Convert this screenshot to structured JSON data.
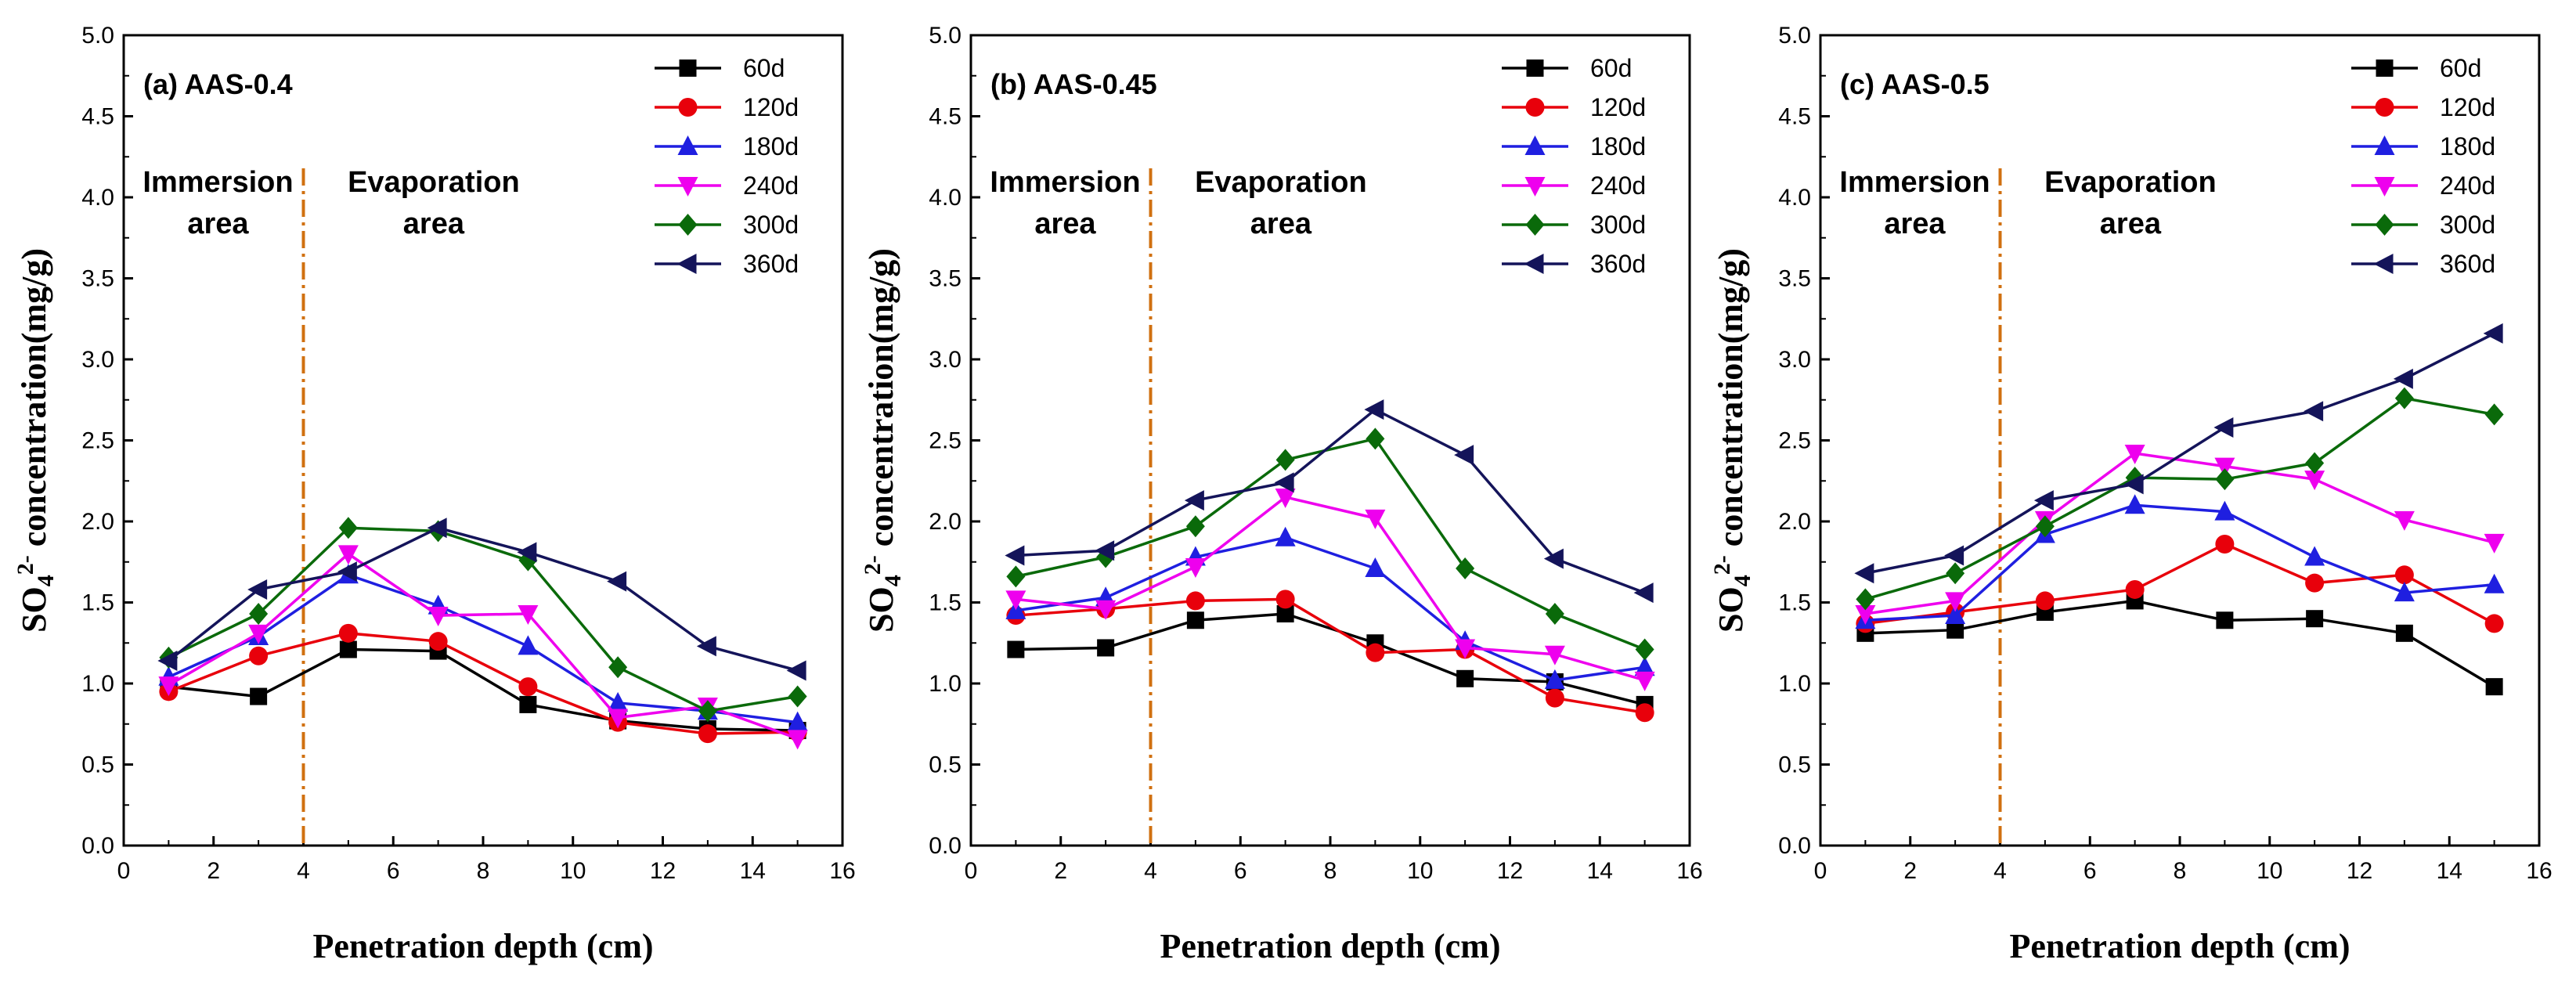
{
  "chart_data": [
    {
      "type": "line",
      "title": "(a) AAS-0.4",
      "xlabel": "Penetration depth (cm)",
      "ylabel": "SO42- concentration(mg/g)",
      "xlim": [
        0,
        16
      ],
      "ylim": [
        0,
        5.0
      ],
      "xticks": [
        "0",
        "2",
        "4",
        "6",
        "8",
        "10",
        "12",
        "14",
        "16"
      ],
      "yticks": [
        "0.0",
        "0.5",
        "1.0",
        "1.5",
        "2.0",
        "2.5",
        "3.0",
        "3.5",
        "4.0",
        "4.5",
        "5.0"
      ],
      "divider_x": 4,
      "annotations": [
        {
          "line1": "Immersion",
          "line2": "area"
        },
        {
          "line1": "Evaporation",
          "line2": "area"
        }
      ],
      "x": [
        1,
        3,
        5,
        7,
        9,
        11,
        13,
        15
      ],
      "series": [
        {
          "name": "60d",
          "color": "#000000",
          "marker": "square",
          "values": [
            0.98,
            0.92,
            1.21,
            1.2,
            0.87,
            0.77,
            0.72,
            0.71
          ]
        },
        {
          "name": "120d",
          "color": "#e8000b",
          "marker": "circle",
          "values": [
            0.95,
            1.17,
            1.31,
            1.26,
            0.98,
            0.76,
            0.69,
            0.7
          ]
        },
        {
          "name": "180d",
          "color": "#1f1fe0",
          "marker": "triangle-up",
          "values": [
            1.04,
            1.29,
            1.67,
            1.48,
            1.23,
            0.88,
            0.83,
            0.76
          ]
        },
        {
          "name": "240d",
          "color": "#ee00ee",
          "marker": "triangle-down",
          "values": [
            0.99,
            1.31,
            1.8,
            1.42,
            1.43,
            0.79,
            0.86,
            0.66
          ]
        },
        {
          "name": "300d",
          "color": "#0a6a0a",
          "marker": "diamond",
          "values": [
            1.16,
            1.43,
            1.96,
            1.94,
            1.76,
            1.1,
            0.83,
            0.92
          ]
        },
        {
          "name": "360d",
          "color": "#14145a",
          "marker": "triangle-left",
          "values": [
            1.14,
            1.58,
            1.69,
            1.96,
            1.81,
            1.63,
            1.23,
            1.08
          ]
        }
      ]
    },
    {
      "type": "line",
      "title": "(b) AAS-0.45",
      "xlabel": "Penetration depth (cm)",
      "ylabel": "SO42- concentration(mg/g)",
      "xlim": [
        0,
        16
      ],
      "ylim": [
        0,
        5.0
      ],
      "xticks": [
        "0",
        "2",
        "4",
        "6",
        "8",
        "10",
        "12",
        "14",
        "16"
      ],
      "yticks": [
        "0.0",
        "0.5",
        "1.0",
        "1.5",
        "2.0",
        "2.5",
        "3.0",
        "3.5",
        "4.0",
        "4.5",
        "5.0"
      ],
      "divider_x": 4,
      "annotations": [
        {
          "line1": "Immersion",
          "line2": "area"
        },
        {
          "line1": "Evaporation",
          "line2": "area"
        }
      ],
      "x": [
        1,
        3,
        5,
        7,
        9,
        11,
        13,
        15
      ],
      "series": [
        {
          "name": "60d",
          "color": "#000000",
          "marker": "square",
          "values": [
            1.21,
            1.22,
            1.39,
            1.43,
            1.25,
            1.03,
            1.01,
            0.87
          ]
        },
        {
          "name": "120d",
          "color": "#e8000b",
          "marker": "circle",
          "values": [
            1.42,
            1.46,
            1.51,
            1.52,
            1.19,
            1.21,
            0.91,
            0.82
          ]
        },
        {
          "name": "180d",
          "color": "#1f1fe0",
          "marker": "triangle-up",
          "values": [
            1.45,
            1.53,
            1.78,
            1.9,
            1.71,
            1.26,
            1.02,
            1.1
          ]
        },
        {
          "name": "240d",
          "color": "#ee00ee",
          "marker": "triangle-down",
          "values": [
            1.52,
            1.46,
            1.72,
            2.15,
            2.02,
            1.22,
            1.18,
            1.02
          ]
        },
        {
          "name": "300d",
          "color": "#0a6a0a",
          "marker": "diamond",
          "values": [
            1.66,
            1.78,
            1.97,
            2.38,
            2.51,
            1.71,
            1.43,
            1.21
          ]
        },
        {
          "name": "360d",
          "color": "#14145a",
          "marker": "triangle-left",
          "values": [
            1.79,
            1.82,
            2.13,
            2.24,
            2.69,
            2.41,
            1.77,
            1.56
          ]
        }
      ]
    },
    {
      "type": "line",
      "title": "(c) AAS-0.5",
      "xlabel": "Penetration depth (cm)",
      "ylabel": "SO42- concentration(mg/g)",
      "xlim": [
        0,
        16
      ],
      "ylim": [
        0,
        5.0
      ],
      "xticks": [
        "0",
        "2",
        "4",
        "6",
        "8",
        "10",
        "12",
        "14",
        "16"
      ],
      "yticks": [
        "0.0",
        "0.5",
        "1.0",
        "1.5",
        "2.0",
        "2.5",
        "3.0",
        "3.5",
        "4.0",
        "4.5",
        "5.0"
      ],
      "divider_x": 4,
      "annotations": [
        {
          "line1": "Immersion",
          "line2": "area"
        },
        {
          "line1": "Evaporation",
          "line2": "area"
        }
      ],
      "x": [
        1,
        3,
        5,
        7,
        9,
        11,
        13,
        15
      ],
      "series": [
        {
          "name": "60d",
          "color": "#000000",
          "marker": "square",
          "values": [
            1.31,
            1.33,
            1.44,
            1.51,
            1.39,
            1.4,
            1.31,
            0.98
          ]
        },
        {
          "name": "120d",
          "color": "#e8000b",
          "marker": "circle",
          "values": [
            1.37,
            1.44,
            1.51,
            1.58,
            1.86,
            1.62,
            1.67,
            1.37
          ]
        },
        {
          "name": "180d",
          "color": "#1f1fe0",
          "marker": "triangle-up",
          "values": [
            1.39,
            1.42,
            1.92,
            2.1,
            2.06,
            1.78,
            1.56,
            1.61
          ]
        },
        {
          "name": "240d",
          "color": "#ee00ee",
          "marker": "triangle-down",
          "values": [
            1.43,
            1.51,
            2.01,
            2.42,
            2.34,
            2.26,
            2.01,
            1.87
          ]
        },
        {
          "name": "300d",
          "color": "#0a6a0a",
          "marker": "diamond",
          "values": [
            1.52,
            1.68,
            1.97,
            2.27,
            2.26,
            2.36,
            2.76,
            2.66
          ]
        },
        {
          "name": "360d",
          "color": "#14145a",
          "marker": "triangle-left",
          "values": [
            1.68,
            1.79,
            2.13,
            2.23,
            2.58,
            2.68,
            2.88,
            3.16
          ]
        }
      ]
    }
  ]
}
